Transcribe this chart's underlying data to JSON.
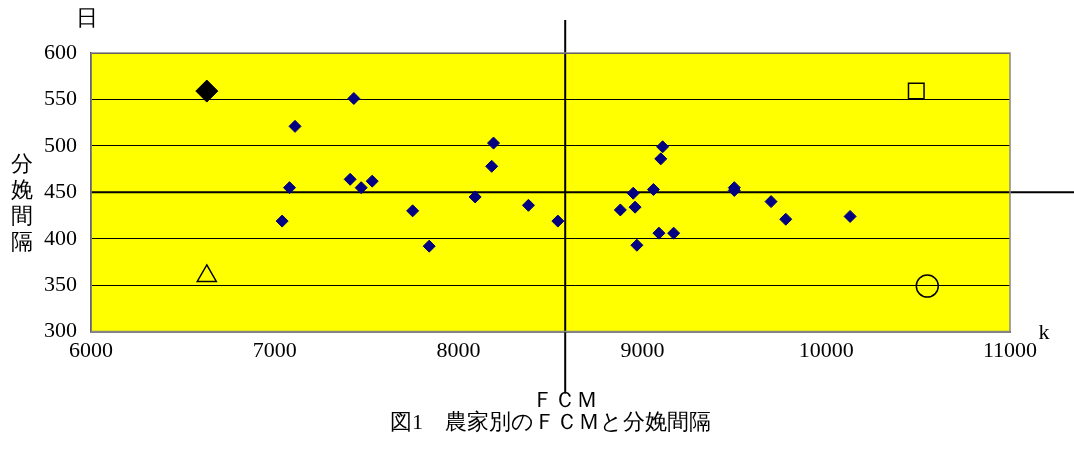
{
  "chart_data": {
    "type": "scatter",
    "xlabel": "ＦＣＭ",
    "ylabel": "分娩間隔",
    "annotations": [
      "日",
      "k",
      "図1　農家別のＦＣＭと分娩間隔"
    ],
    "xlim": [
      6000,
      11000
    ],
    "xticks": [
      6000,
      7000,
      8000,
      9000,
      10000,
      11000
    ],
    "ylim": [
      300,
      600
    ],
    "yticks": [
      300,
      350,
      400,
      450,
      500,
      550,
      600
    ],
    "grid": "y",
    "legend": false,
    "ref_lines": [
      {
        "axis": "x",
        "value": 8580,
        "color": "#000000"
      },
      {
        "axis": "y",
        "value": 450,
        "color": "#000000"
      }
    ],
    "series": [
      {
        "color": "#000080",
        "marker": "diamond",
        "x": [
          7430,
          7110,
          8190,
          8180,
          9110,
          9100,
          7410,
          7530,
          7470,
          7080,
          8090,
          7750,
          7040,
          7840,
          8380,
          8540,
          9500,
          9500,
          9060,
          8950,
          8960,
          8880,
          9700,
          9780,
          10130,
          9090,
          9170,
          8970
        ],
        "values": [
          551,
          521,
          503,
          478,
          499,
          486,
          464,
          462,
          455,
          455,
          445,
          430,
          419,
          392,
          436,
          419,
          455,
          452,
          453,
          449,
          434,
          431,
          440,
          421,
          424,
          406,
          406,
          393
        ]
      },
      {
        "color": "#000000",
        "marker": "diamond",
        "x": [
          6630
        ],
        "values": [
          559
        ]
      },
      {
        "color": "#000000",
        "marker": "triangle",
        "x": [
          6630
        ],
        "values": [
          360
        ]
      },
      {
        "color": "#000000",
        "marker": "square",
        "x": [
          10490
        ],
        "values": [
          559
        ]
      },
      {
        "color": "#000000",
        "marker": "circle",
        "x": [
          10550
        ],
        "values": [
          349
        ]
      }
    ]
  }
}
